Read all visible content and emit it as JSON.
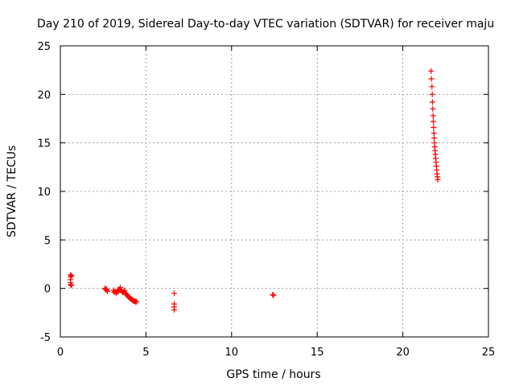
{
  "chart_data": {
    "type": "scatter",
    "title": "Day 210 of 2019, Sidereal Day-to-day VTEC variation (SDTVAR) for receiver maju",
    "xlabel": "GPS time / hours",
    "ylabel": "SDTVAR / TECUs",
    "xlim": [
      0,
      25
    ],
    "ylim": [
      -5,
      25
    ],
    "xticks": [
      0,
      5,
      10,
      15,
      20,
      25
    ],
    "yticks": [
      -5,
      0,
      5,
      10,
      15,
      20,
      25
    ],
    "xtick_labels": [
      "0",
      "5",
      "10",
      "15",
      "20",
      "25"
    ],
    "ytick_labels": [
      "-5",
      "0",
      "5",
      "10",
      "15",
      "20",
      "25"
    ],
    "grid": true,
    "marker": "+",
    "color": "#ff0000",
    "series": [
      {
        "name": "SDTVAR",
        "points": [
          [
            0.6,
            1.4
          ],
          [
            0.6,
            1.2
          ],
          [
            0.6,
            0.9
          ],
          [
            0.6,
            0.6
          ],
          [
            0.6,
            0.4
          ],
          [
            0.65,
            0.3
          ],
          [
            0.65,
            1.3
          ],
          [
            2.6,
            0.0
          ],
          [
            2.65,
            -0.1
          ],
          [
            2.7,
            -0.15
          ],
          [
            2.75,
            -0.3
          ],
          [
            2.7,
            -0.1
          ],
          [
            3.1,
            -0.2
          ],
          [
            3.15,
            -0.4
          ],
          [
            3.2,
            -0.3
          ],
          [
            3.25,
            -0.5
          ],
          [
            3.3,
            -0.3
          ],
          [
            3.35,
            -0.4
          ],
          [
            3.4,
            -0.2
          ],
          [
            3.45,
            -0.1
          ],
          [
            3.5,
            0.1
          ],
          [
            3.55,
            -0.2
          ],
          [
            3.6,
            -0.3
          ],
          [
            3.65,
            -0.4
          ],
          [
            3.7,
            -0.3
          ],
          [
            3.75,
            -0.2
          ],
          [
            3.8,
            -0.5
          ],
          [
            3.85,
            -0.6
          ],
          [
            3.9,
            -0.7
          ],
          [
            3.95,
            -0.8
          ],
          [
            4.0,
            -0.9
          ],
          [
            4.05,
            -1.0
          ],
          [
            4.1,
            -1.05
          ],
          [
            4.15,
            -1.1
          ],
          [
            4.2,
            -1.2
          ],
          [
            4.25,
            -1.25
          ],
          [
            4.3,
            -1.3
          ],
          [
            4.35,
            -1.3
          ],
          [
            4.4,
            -1.4
          ],
          [
            4.45,
            -1.35
          ],
          [
            6.65,
            -0.5
          ],
          [
            6.65,
            -1.6
          ],
          [
            6.65,
            -1.9
          ],
          [
            6.65,
            -2.2
          ],
          [
            12.4,
            -0.65
          ],
          [
            12.45,
            -0.7
          ],
          [
            21.65,
            22.4
          ],
          [
            21.67,
            21.6
          ],
          [
            21.7,
            20.8
          ],
          [
            21.72,
            20.0
          ],
          [
            21.73,
            19.2
          ],
          [
            21.75,
            18.5
          ],
          [
            21.77,
            17.8
          ],
          [
            21.78,
            17.2
          ],
          [
            21.8,
            16.6
          ],
          [
            21.82,
            16.0
          ],
          [
            21.83,
            15.5
          ],
          [
            21.85,
            15.0
          ],
          [
            21.86,
            14.6
          ],
          [
            21.88,
            14.2
          ],
          [
            21.9,
            13.8
          ],
          [
            21.92,
            13.4
          ],
          [
            21.94,
            13.0
          ],
          [
            21.96,
            12.6
          ],
          [
            21.98,
            12.2
          ],
          [
            22.0,
            11.8
          ],
          [
            22.02,
            11.5
          ],
          [
            22.04,
            11.2
          ]
        ]
      }
    ]
  }
}
